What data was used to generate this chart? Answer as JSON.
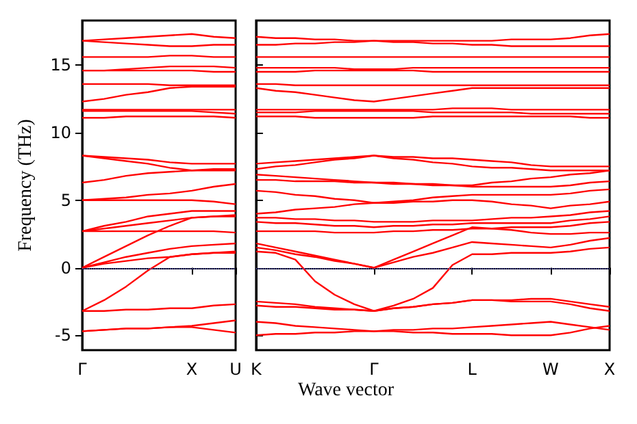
{
  "chart_data": [
    {
      "type": "line",
      "ylabel": "Frequency (THz)",
      "categories": [
        "Γ",
        null,
        null,
        null,
        null,
        "X",
        null,
        "U"
      ],
      "ylim": [
        -6.1,
        18.3
      ],
      "yticks": [
        -5,
        0,
        5,
        10,
        15
      ],
      "marker": "none",
      "line_style": "solid",
      "ref_lines": [
        {
          "axis": "y",
          "value": 0,
          "color": "#5555cc",
          "line_style": "dotted"
        }
      ],
      "series": [
        {
          "color": "#ff0000",
          "values": [
            16.8,
            16.9,
            17.0,
            17.1,
            17.2,
            17.3,
            17.1,
            17.0
          ]
        },
        {
          "color": "#ff0000",
          "values": [
            16.8,
            16.7,
            16.6,
            16.5,
            16.4,
            16.4,
            16.5,
            16.5
          ]
        },
        {
          "color": "#ff0000",
          "values": [
            15.6,
            15.6,
            15.6,
            15.6,
            15.7,
            15.7,
            15.6,
            15.6
          ]
        },
        {
          "color": "#ff0000",
          "values": [
            14.6,
            14.6,
            14.7,
            14.8,
            14.9,
            14.9,
            14.9,
            14.8
          ]
        },
        {
          "color": "#ff0000",
          "values": [
            14.6,
            14.6,
            14.6,
            14.6,
            14.6,
            14.6,
            14.5,
            14.5
          ]
        },
        {
          "color": "#ff0000",
          "values": [
            13.6,
            13.6,
            13.6,
            13.6,
            13.5,
            13.5,
            13.5,
            13.5
          ]
        },
        {
          "color": "#ff0000",
          "values": [
            12.3,
            12.5,
            12.8,
            13.0,
            13.3,
            13.4,
            13.4,
            13.4
          ]
        },
        {
          "color": "#ff0000",
          "values": [
            11.7,
            11.7,
            11.7,
            11.7,
            11.7,
            11.7,
            11.7,
            11.7
          ]
        },
        {
          "color": "#ff0000",
          "values": [
            11.6,
            11.6,
            11.6,
            11.6,
            11.6,
            11.6,
            11.5,
            11.4
          ]
        },
        {
          "color": "#ff0000",
          "values": [
            11.1,
            11.1,
            11.2,
            11.2,
            11.2,
            11.2,
            11.2,
            11.1
          ]
        },
        {
          "color": "#ff0000",
          "values": [
            8.3,
            8.1,
            7.9,
            7.7,
            7.4,
            7.2,
            7.2,
            7.2
          ]
        },
        {
          "color": "#ff0000",
          "values": [
            8.3,
            8.2,
            8.1,
            8.0,
            7.8,
            7.7,
            7.7,
            7.7
          ]
        },
        {
          "color": "#ff0000",
          "values": [
            6.3,
            6.5,
            6.8,
            7.0,
            7.1,
            7.2,
            7.3,
            7.3
          ]
        },
        {
          "color": "#ff0000",
          "values": [
            5.0,
            5.1,
            5.2,
            5.4,
            5.5,
            5.7,
            6.0,
            6.2
          ]
        },
        {
          "color": "#ff0000",
          "values": [
            5.0,
            5.0,
            5.0,
            5.0,
            5.0,
            5.0,
            4.9,
            4.7
          ]
        },
        {
          "color": "#ff0000",
          "values": [
            2.7,
            3.1,
            3.4,
            3.8,
            4.0,
            4.2,
            4.2,
            4.2
          ]
        },
        {
          "color": "#ff0000",
          "values": [
            2.7,
            2.7,
            2.7,
            2.7,
            2.7,
            2.7,
            2.7,
            2.6
          ]
        },
        {
          "color": "#ff0000",
          "values": [
            2.7,
            2.9,
            3.1,
            3.3,
            3.5,
            3.7,
            3.8,
            3.9
          ]
        },
        {
          "color": "#ff0000",
          "values": [
            0,
            0.8,
            1.6,
            2.4,
            3.1,
            3.7,
            3.8,
            3.8
          ]
        },
        {
          "color": "#ff0000",
          "values": [
            0,
            0.4,
            0.8,
            1.1,
            1.4,
            1.6,
            1.7,
            1.8
          ]
        },
        {
          "color": "#ff0000",
          "values": [
            0,
            0.3,
            0.5,
            0.7,
            0.8,
            1.0,
            1.1,
            1.2
          ]
        },
        {
          "color": "#ff0000",
          "values": [
            -3.2,
            -2.4,
            -1.4,
            -0.2,
            0.8,
            1.0,
            1.1,
            1.1
          ]
        },
        {
          "color": "#ff0000",
          "values": [
            -3.2,
            -3.2,
            -3.1,
            -3.1,
            -3.0,
            -3.0,
            -2.8,
            -2.7
          ]
        },
        {
          "color": "#ff0000",
          "values": [
            -4.7,
            -4.6,
            -4.5,
            -4.5,
            -4.4,
            -4.3,
            -4.1,
            -3.9
          ]
        },
        {
          "color": "#ff0000",
          "values": [
            -4.7,
            -4.6,
            -4.5,
            -4.5,
            -4.4,
            -4.4,
            -4.6,
            -4.8
          ]
        }
      ]
    },
    {
      "type": "line",
      "xlabel": "Wave vector",
      "tick_labels": "x",
      "categories": [
        "K",
        null,
        null,
        null,
        null,
        null,
        "Γ",
        null,
        null,
        null,
        null,
        "L",
        null,
        null,
        null,
        "W",
        null,
        null,
        "X"
      ],
      "ylim": [
        -6.1,
        18.3
      ],
      "yticks": [
        -5,
        0,
        5,
        10,
        15
      ],
      "marker": "none",
      "line_style": "solid",
      "ref_lines": [
        {
          "axis": "y",
          "value": 0,
          "color": "#5555cc",
          "line_style": "dotted"
        }
      ],
      "series": [
        {
          "color": "#ff0000",
          "values": [
            17.1,
            17.0,
            17.0,
            16.9,
            16.9,
            16.8,
            16.8,
            16.8,
            16.8,
            16.8,
            16.8,
            16.8,
            16.8,
            16.9,
            16.9,
            16.9,
            17.0,
            17.2,
            17.3
          ]
        },
        {
          "color": "#ff0000",
          "values": [
            16.5,
            16.5,
            16.6,
            16.6,
            16.7,
            16.7,
            16.8,
            16.7,
            16.7,
            16.6,
            16.6,
            16.5,
            16.5,
            16.4,
            16.4,
            16.4,
            16.4,
            16.4,
            16.4
          ]
        },
        {
          "color": "#ff0000",
          "values": [
            15.6,
            15.6,
            15.6,
            15.6,
            15.6,
            15.6,
            15.6,
            15.6,
            15.6,
            15.6,
            15.6,
            15.6,
            15.6,
            15.6,
            15.6,
            15.6,
            15.6,
            15.6,
            15.6
          ]
        },
        {
          "color": "#ff0000",
          "values": [
            14.8,
            14.8,
            14.8,
            14.8,
            14.8,
            14.7,
            14.7,
            14.7,
            14.8,
            14.8,
            14.8,
            14.8,
            14.8,
            14.8,
            14.8,
            14.8,
            14.8,
            14.8,
            14.8
          ]
        },
        {
          "color": "#ff0000",
          "values": [
            14.5,
            14.5,
            14.5,
            14.6,
            14.6,
            14.6,
            14.6,
            14.6,
            14.6,
            14.5,
            14.5,
            14.5,
            14.5,
            14.5,
            14.5,
            14.5,
            14.5,
            14.5,
            14.5
          ]
        },
        {
          "color": "#ff0000",
          "values": [
            13.6,
            13.6,
            13.5,
            13.5,
            13.5,
            13.5,
            13.5,
            13.5,
            13.5,
            13.5,
            13.5,
            13.5,
            13.5,
            13.5,
            13.5,
            13.5,
            13.5,
            13.5,
            13.5
          ]
        },
        {
          "color": "#ff0000",
          "values": [
            13.3,
            13.1,
            13.0,
            12.8,
            12.6,
            12.4,
            12.3,
            12.5,
            12.7,
            12.9,
            13.1,
            13.3,
            13.3,
            13.3,
            13.3,
            13.3,
            13.3,
            13.3,
            13.3
          ]
        },
        {
          "color": "#ff0000",
          "values": [
            11.7,
            11.7,
            11.7,
            11.7,
            11.7,
            11.7,
            11.7,
            11.7,
            11.7,
            11.7,
            11.8,
            11.8,
            11.8,
            11.7,
            11.7,
            11.7,
            11.7,
            11.7,
            11.7
          ]
        },
        {
          "color": "#ff0000",
          "values": [
            11.5,
            11.5,
            11.5,
            11.6,
            11.6,
            11.6,
            11.6,
            11.6,
            11.6,
            11.5,
            11.5,
            11.5,
            11.5,
            11.5,
            11.4,
            11.4,
            11.4,
            11.4,
            11.4
          ]
        },
        {
          "color": "#ff0000",
          "values": [
            11.2,
            11.2,
            11.2,
            11.1,
            11.1,
            11.1,
            11.1,
            11.1,
            11.1,
            11.2,
            11.2,
            11.2,
            11.2,
            11.2,
            11.2,
            11.2,
            11.2,
            11.1,
            11.1
          ]
        },
        {
          "color": "#ff0000",
          "values": [
            7.7,
            7.8,
            7.9,
            8.0,
            8.1,
            8.2,
            8.3,
            8.2,
            8.2,
            8.1,
            8.1,
            8.0,
            7.9,
            7.8,
            7.6,
            7.5,
            7.5,
            7.5,
            7.5
          ]
        },
        {
          "color": "#ff0000",
          "values": [
            7.3,
            7.5,
            7.6,
            7.8,
            8.0,
            8.1,
            8.3,
            8.1,
            8.0,
            7.8,
            7.7,
            7.5,
            7.4,
            7.4,
            7.3,
            7.2,
            7.2,
            7.2,
            7.2
          ]
        },
        {
          "color": "#ff0000",
          "values": [
            6.9,
            6.8,
            6.7,
            6.6,
            6.5,
            6.4,
            6.3,
            6.3,
            6.2,
            6.2,
            6.1,
            6.1,
            6.3,
            6.4,
            6.6,
            6.7,
            6.9,
            7.0,
            7.2
          ]
        },
        {
          "color": "#ff0000",
          "values": [
            6.5,
            6.5,
            6.4,
            6.4,
            6.4,
            6.3,
            6.3,
            6.2,
            6.2,
            6.1,
            6.1,
            6.0,
            6.0,
            6.0,
            6.0,
            6.0,
            6.1,
            6.3,
            6.4
          ]
        },
        {
          "color": "#ff0000",
          "values": [
            5.7,
            5.6,
            5.4,
            5.3,
            5.1,
            5.0,
            4.8,
            4.9,
            5.0,
            5.2,
            5.3,
            5.4,
            5.4,
            5.4,
            5.4,
            5.4,
            5.5,
            5.7,
            5.8
          ]
        },
        {
          "color": "#ff0000",
          "values": [
            4.0,
            4.1,
            4.3,
            4.4,
            4.5,
            4.7,
            4.8,
            4.8,
            4.9,
            4.9,
            5.0,
            5.0,
            4.9,
            4.7,
            4.6,
            4.4,
            4.6,
            4.7,
            4.9
          ]
        },
        {
          "color": "#ff0000",
          "values": [
            3.7,
            3.7,
            3.6,
            3.6,
            3.5,
            3.5,
            3.4,
            3.4,
            3.4,
            3.5,
            3.5,
            3.5,
            3.6,
            3.7,
            3.7,
            3.8,
            3.9,
            4.1,
            4.2
          ]
        },
        {
          "color": "#ff0000",
          "values": [
            3.4,
            3.3,
            3.3,
            3.2,
            3.1,
            3.1,
            3.0,
            3.1,
            3.1,
            3.2,
            3.2,
            3.3,
            3.3,
            3.3,
            3.3,
            3.3,
            3.5,
            3.6,
            3.8
          ]
        },
        {
          "color": "#ff0000",
          "values": [
            2.7,
            2.7,
            2.7,
            2.7,
            2.6,
            2.6,
            2.6,
            2.7,
            2.7,
            2.8,
            2.8,
            2.9,
            2.9,
            3.0,
            3.0,
            3.0,
            3.1,
            3.3,
            3.4
          ]
        },
        {
          "color": "#ff0000",
          "values": [
            1.8,
            1.5,
            1.2,
            0.9,
            0.6,
            0.3,
            0,
            0.6,
            1.2,
            1.8,
            2.4,
            3.0,
            2.9,
            2.8,
            2.6,
            2.5,
            2.5,
            2.6,
            2.6
          ]
        },
        {
          "color": "#ff0000",
          "values": [
            1.5,
            1.3,
            1.0,
            0.8,
            0.5,
            0.3,
            0,
            0.4,
            0.8,
            1.1,
            1.5,
            1.9,
            1.8,
            1.7,
            1.6,
            1.5,
            1.7,
            2.0,
            2.2
          ]
        },
        {
          "color": "#ff0000",
          "values": [
            1.2,
            1.1,
            0.6,
            -1.0,
            -2.0,
            -2.7,
            -3.2,
            -2.8,
            -2.3,
            -1.5,
            0.2,
            1.0,
            1.0,
            1.1,
            1.1,
            1.1,
            1.2,
            1.4,
            1.5
          ]
        },
        {
          "color": "#ff0000",
          "values": [
            -2.5,
            -2.6,
            -2.7,
            -2.9,
            -3.0,
            -3.1,
            -3.2,
            -3.0,
            -2.9,
            -2.7,
            -2.6,
            -2.4,
            -2.4,
            -2.4,
            -2.3,
            -2.3,
            -2.5,
            -2.7,
            -2.9
          ]
        },
        {
          "color": "#ff0000",
          "values": [
            -2.8,
            -2.9,
            -2.9,
            -3.0,
            -3.1,
            -3.1,
            -3.2,
            -3.0,
            -2.9,
            -2.7,
            -2.6,
            -2.4,
            -2.4,
            -2.5,
            -2.5,
            -2.5,
            -2.7,
            -3.0,
            -3.2
          ]
        },
        {
          "color": "#ff0000",
          "values": [
            -4.0,
            -4.1,
            -4.3,
            -4.4,
            -4.5,
            -4.6,
            -4.7,
            -4.6,
            -4.6,
            -4.5,
            -4.5,
            -4.4,
            -4.3,
            -4.2,
            -4.1,
            -4.0,
            -4.2,
            -4.4,
            -4.6
          ]
        },
        {
          "color": "#ff0000",
          "values": [
            -5.0,
            -4.9,
            -4.9,
            -4.8,
            -4.8,
            -4.7,
            -4.7,
            -4.7,
            -4.8,
            -4.8,
            -4.9,
            -4.9,
            -4.9,
            -5.0,
            -5.0,
            -5.0,
            -4.8,
            -4.5,
            -4.3
          ]
        }
      ]
    }
  ]
}
